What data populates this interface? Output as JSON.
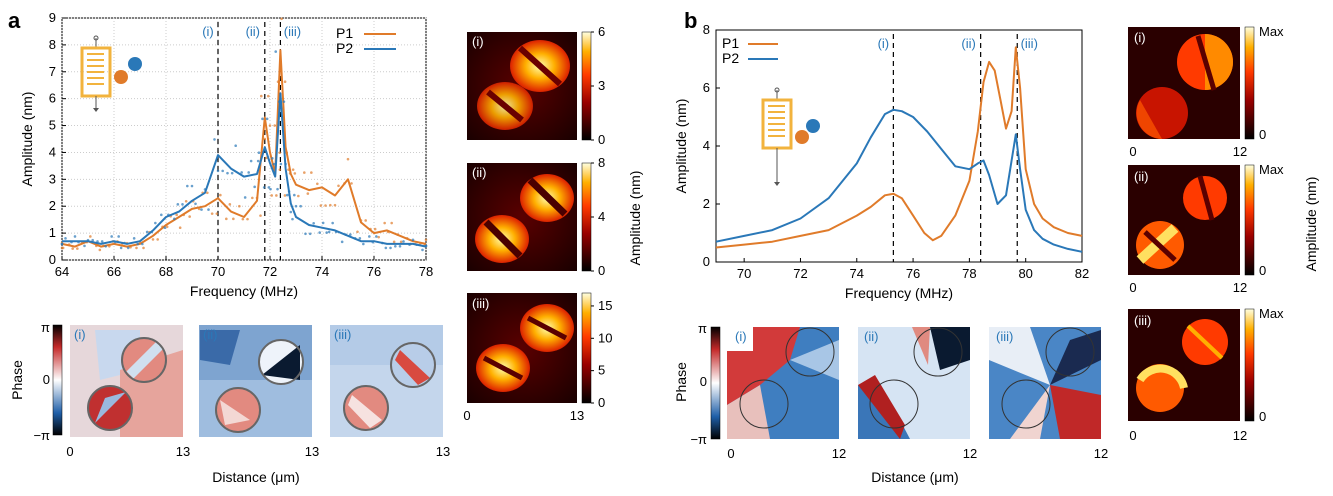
{
  "figure": {
    "panel_a_letter": "a",
    "panel_b_letter": "b",
    "roman": [
      "(i)",
      "(ii)",
      "(iii)"
    ],
    "phase_label": "Phase",
    "phase_ticks": [
      "π",
      "0",
      "−π"
    ],
    "distance_label": "Distance (μm)",
    "amplitude_nm_label": "Amplitude (nm)",
    "colors": {
      "p1": "#e07b2a",
      "p2": "#2a78b8",
      "idt": "#f2b33d"
    }
  },
  "chart_data": [
    {
      "type": "line",
      "id": "a-spectrum",
      "xlabel": "Frequency (MHz)",
      "ylabel": "Amplitude (nm)",
      "xlim": [
        64,
        78
      ],
      "ylim": [
        0,
        9
      ],
      "x_ticks": [
        "64",
        "66",
        "68",
        "70",
        "72",
        "74",
        "76",
        "78"
      ],
      "y_ticks": [
        "0",
        "1",
        "2",
        "3",
        "4",
        "5",
        "6",
        "7",
        "8",
        "9"
      ],
      "grid": true,
      "legend": "top-right",
      "markers": [
        70.0,
        71.8,
        72.4
      ],
      "series": [
        {
          "name": "P1",
          "color": "#e07b2a",
          "x": [
            64,
            64.5,
            65,
            65.5,
            66,
            66.5,
            67,
            67.5,
            68,
            68.5,
            69,
            69.5,
            70,
            70.5,
            71,
            71.5,
            71.8,
            72,
            72.2,
            72.4,
            72.6,
            72.8,
            73,
            73.5,
            74,
            74.5,
            75,
            75.5,
            76,
            76.5,
            77,
            77.5,
            78
          ],
          "values": [
            0.6,
            0.5,
            0.7,
            0.5,
            0.6,
            0.5,
            0.6,
            0.9,
            1.3,
            1.6,
            1.9,
            2.0,
            2.3,
            1.8,
            1.6,
            2.2,
            5.3,
            4.0,
            3.2,
            7.8,
            4.2,
            3.2,
            2.8,
            2.6,
            2.7,
            2.4,
            3.0,
            1.4,
            1.0,
            1.1,
            0.9,
            0.7,
            0.6
          ]
        },
        {
          "name": "P2",
          "color": "#2a78b8",
          "x": [
            64,
            64.5,
            65,
            65.5,
            66,
            66.5,
            67,
            67.5,
            68,
            68.5,
            69,
            69.5,
            70,
            70.5,
            71,
            71.5,
            71.8,
            72,
            72.2,
            72.4,
            72.6,
            72.8,
            73,
            73.5,
            74,
            74.5,
            75,
            75.5,
            76,
            76.5,
            77,
            77.5,
            78
          ],
          "values": [
            0.7,
            0.7,
            0.7,
            0.6,
            0.7,
            0.6,
            0.7,
            1.1,
            1.6,
            1.8,
            2.2,
            2.5,
            3.9,
            3.4,
            3.1,
            3.2,
            4.2,
            3.6,
            3.1,
            6.2,
            3.4,
            2.1,
            1.6,
            1.3,
            1.2,
            1.1,
            0.9,
            0.7,
            0.7,
            0.6,
            0.6,
            0.6,
            0.5
          ]
        }
      ]
    },
    {
      "type": "line",
      "id": "b-spectrum",
      "xlabel": "Frequency (MHz)",
      "ylabel": "Amplitude (nm)",
      "xlim": [
        69,
        82
      ],
      "ylim": [
        0,
        8
      ],
      "x_ticks": [
        "70",
        "72",
        "74",
        "76",
        "78",
        "80",
        "82"
      ],
      "y_ticks": [
        "0",
        "2",
        "4",
        "6",
        "8"
      ],
      "grid": false,
      "legend": "top-left",
      "markers": [
        75.3,
        78.4,
        79.7
      ],
      "series": [
        {
          "name": "P1",
          "color": "#e07b2a",
          "x": [
            69,
            70,
            71,
            72,
            73,
            74,
            74.5,
            75,
            75.3,
            75.6,
            76,
            76.4,
            76.7,
            77,
            77.5,
            78,
            78.3,
            78.5,
            78.7,
            78.9,
            79.1,
            79.3,
            79.5,
            79.65,
            79.8,
            80,
            80.3,
            80.6,
            81,
            81.5,
            82
          ],
          "values": [
            0.5,
            0.6,
            0.7,
            0.9,
            1.1,
            1.6,
            1.9,
            2.3,
            2.35,
            2.2,
            1.6,
            1.0,
            0.75,
            0.9,
            1.6,
            2.8,
            4.5,
            6.2,
            6.9,
            6.6,
            5.6,
            4.6,
            5.2,
            7.4,
            6.0,
            3.2,
            2.0,
            1.5,
            1.2,
            1.0,
            0.9
          ]
        },
        {
          "name": "P2",
          "color": "#2a78b8",
          "x": [
            69,
            70,
            71,
            72,
            73,
            74,
            74.5,
            75,
            75.3,
            75.6,
            76,
            76.5,
            77,
            77.5,
            78,
            78.3,
            78.5,
            78.7,
            79,
            79.3,
            79.5,
            79.65,
            79.8,
            80,
            80.3,
            80.6,
            81,
            81.5,
            82
          ],
          "values": [
            0.7,
            0.9,
            1.1,
            1.5,
            2.2,
            3.4,
            4.3,
            5.1,
            5.25,
            5.2,
            5.0,
            4.5,
            3.9,
            3.3,
            3.2,
            3.4,
            3.5,
            3.0,
            2.0,
            2.3,
            3.5,
            4.4,
            3.2,
            1.8,
            1.1,
            0.8,
            0.6,
            0.45,
            0.35
          ]
        }
      ]
    },
    {
      "type": "heatmap",
      "id": "a-amp-colorbar-i",
      "ticks": [
        "0",
        "3",
        "6"
      ],
      "range": [
        0,
        6
      ]
    },
    {
      "type": "heatmap",
      "id": "a-amp-colorbar-ii",
      "ticks": [
        "0",
        "4",
        "8"
      ],
      "range": [
        0,
        8
      ]
    },
    {
      "type": "heatmap",
      "id": "a-amp-colorbar-iii",
      "ticks": [
        "0",
        "5",
        "10",
        "15"
      ],
      "range": [
        0,
        17
      ]
    },
    {
      "type": "heatmap",
      "id": "b-amp-colorbar",
      "ticks": [
        "0",
        "Max"
      ]
    }
  ],
  "axes_ticks": {
    "a_phase_x": [
      "0",
      "13"
    ],
    "a_amp_x": [
      "0",
      "13"
    ],
    "b_phase_x": [
      "0",
      "12"
    ],
    "b_amp_x": [
      "0",
      "12"
    ]
  }
}
